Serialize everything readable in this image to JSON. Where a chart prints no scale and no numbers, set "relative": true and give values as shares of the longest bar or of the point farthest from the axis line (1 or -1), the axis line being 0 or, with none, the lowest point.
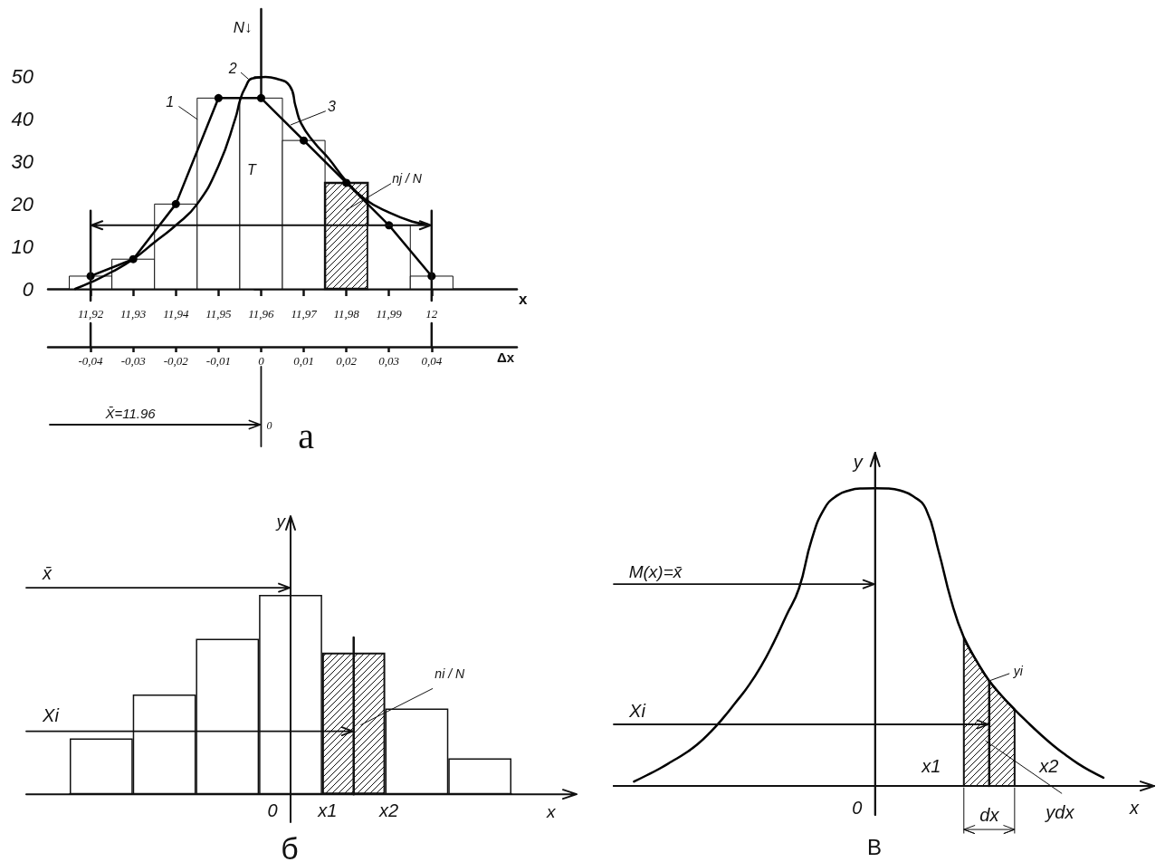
{
  "chart_data": [
    {
      "type": "histogram",
      "title": "а",
      "xlabel": "x",
      "ylabel": "N↓",
      "x2label": "Δx",
      "xlim": [
        11.91,
        12.02
      ],
      "xticks": [
        {
          "value": 11.92,
          "label": "11,92"
        },
        {
          "value": 11.93,
          "label": "11,93"
        },
        {
          "value": 11.94,
          "label": "11,94"
        },
        {
          "value": 11.95,
          "label": "11,95"
        },
        {
          "value": 11.96,
          "label": "11,96"
        },
        {
          "value": 11.97,
          "label": "11,97"
        },
        {
          "value": 11.98,
          "label": "11,98"
        },
        {
          "value": 11.99,
          "label": "11,99"
        },
        12
      ],
      "x2lim": [
        -0.05,
        0.06
      ],
      "x2ticks": [
        {
          "value": -0.04,
          "label": "-0,04"
        },
        {
          "value": -0.03,
          "label": "-0,03"
        },
        {
          "value": -0.02,
          "label": "-0,02"
        },
        {
          "value": -0.01,
          "label": "-0,01"
        },
        0,
        {
          "value": 0.01,
          "label": "0,01"
        },
        {
          "value": 0.02,
          "label": "0,02"
        },
        {
          "value": 0.03,
          "label": "0,03"
        },
        {
          "value": 0.04,
          "label": "0,04"
        }
      ],
      "ylim": [
        0,
        66
      ],
      "yticks": [
        0,
        10,
        20,
        30,
        40,
        50
      ],
      "series": [
        {
          "bins": [
            11.915,
            11.925,
            11.935,
            11.945,
            11.955,
            11.965,
            11.975,
            11.985,
            11.995,
            12.005
          ],
          "values": [
            3,
            7,
            20,
            45,
            45,
            35,
            25,
            15,
            3
          ],
          "colors": [
            "#ffffff",
            "#ffffff",
            "#ffffff",
            "#ffffff",
            "#ffffff",
            "#ffffff",
            "#111111",
            "#ffffff",
            "#ffffff"
          ]
        },
        {
          "type": "line",
          "color": "#000000",
          "marker": "circle",
          "x": [
            11.92,
            11.93,
            11.94,
            11.95,
            11.96,
            11.97,
            11.98,
            11.99,
            12
          ],
          "values": [
            3,
            7,
            20,
            45,
            45,
            35,
            25,
            15,
            3
          ]
        },
        {
          "type": "line",
          "color": "#000000",
          "marker": "none",
          "x": [
            11.9164,
            11.92,
            11.925,
            11.93,
            11.935,
            11.94,
            11.945,
            11.95,
            11.9539,
            11.9552,
            11.9563,
            11.9578,
            11.961,
            11.9635,
            11.9667,
            11.9681,
            11.9694,
            11.9724,
            11.9758,
            11.98,
            11.9843,
            11.99,
            11.9957,
            11.9989
          ],
          "values": [
            0,
            1.5,
            4,
            7,
            11,
            15,
            20,
            29,
            40,
            45,
            47.5,
            49.6,
            50,
            49.6,
            47.9,
            43,
            39,
            34.6,
            30.8,
            25.4,
            21.2,
            18,
            15.8,
            15.2
          ]
        }
      ],
      "ref_lines": [
        {
          "axis": "x",
          "value": 11.92
        },
        {
          "axis": "x",
          "value": 12
        },
        {
          "axis": "y",
          "value": 15
        }
      ],
      "annotations": [
        {
          "text": "1",
          "x": 11.945,
          "y": 40
        },
        {
          "text": "2",
          "x": 11.957,
          "y": 49.5
        },
        {
          "text": "3",
          "x": 11.967,
          "y": 38.7
        },
        "T",
        "nj / N",
        "X̄=11.96",
        "0"
      ]
    },
    {
      "type": "bar",
      "title": "б",
      "xlabel": "x",
      "ylabel": "y",
      "relative": true,
      "categories": [
        null,
        null,
        null,
        null,
        null,
        null,
        null
      ],
      "values": [
        0.28,
        0.5,
        0.78,
        1,
        0.71,
        0.43,
        0.18
      ],
      "colors": [
        "#ffffff",
        "#ffffff",
        "#ffffff",
        "#ffffff",
        "#111111",
        "#ffffff",
        "#ffffff"
      ],
      "annotations": [
        "x̄",
        "Xi",
        "ni / N",
        "0",
        "x1",
        "x2"
      ]
    },
    {
      "type": "line",
      "title": "В",
      "xlabel": "x",
      "ylabel": "y",
      "relative": true,
      "categories": [
        null,
        null,
        null,
        null,
        null,
        null,
        null,
        null,
        null,
        null,
        null,
        null,
        null,
        null,
        null,
        null,
        null,
        null,
        null,
        null,
        null,
        null,
        null,
        null,
        null,
        null,
        null,
        null,
        null,
        null,
        null,
        null,
        null,
        null,
        null,
        null,
        null,
        null
      ],
      "series": [
        {
          "color": "#000000",
          "values": [
            0.015,
            0.036,
            0.058,
            0.083,
            0.109,
            0.14,
            0.18,
            0.227,
            0.28,
            0.335,
            0.401,
            0.481,
            0.572,
            0.663,
            0.827,
            0.931,
            0.975,
            0.993,
            0.999,
            1,
            0.999,
            0.992,
            0.973,
            0.931,
            0.79,
            0.623,
            0.499,
            0.42,
            0.353,
            0.302,
            0.257,
            0.215,
            0.175,
            0.138,
            0.105,
            0.075,
            0.05,
            0.028
          ]
        },
        {
          "type": "area",
          "color": "#111111",
          "values": [
            null,
            null,
            null,
            null,
            null,
            null,
            null,
            null,
            null,
            null,
            null,
            null,
            null,
            null,
            null,
            null,
            null,
            null,
            null,
            null,
            null,
            null,
            null,
            null,
            null,
            null,
            0.499,
            0.42,
            0.353,
            0.302,
            0.257,
            null,
            null,
            null,
            null,
            null,
            null,
            null
          ]
        }
      ],
      "annotations": [
        "M(x)=x̄",
        "Xi",
        "yi",
        "x1",
        "x2",
        "dx",
        "ydx",
        "0"
      ]
    }
  ]
}
